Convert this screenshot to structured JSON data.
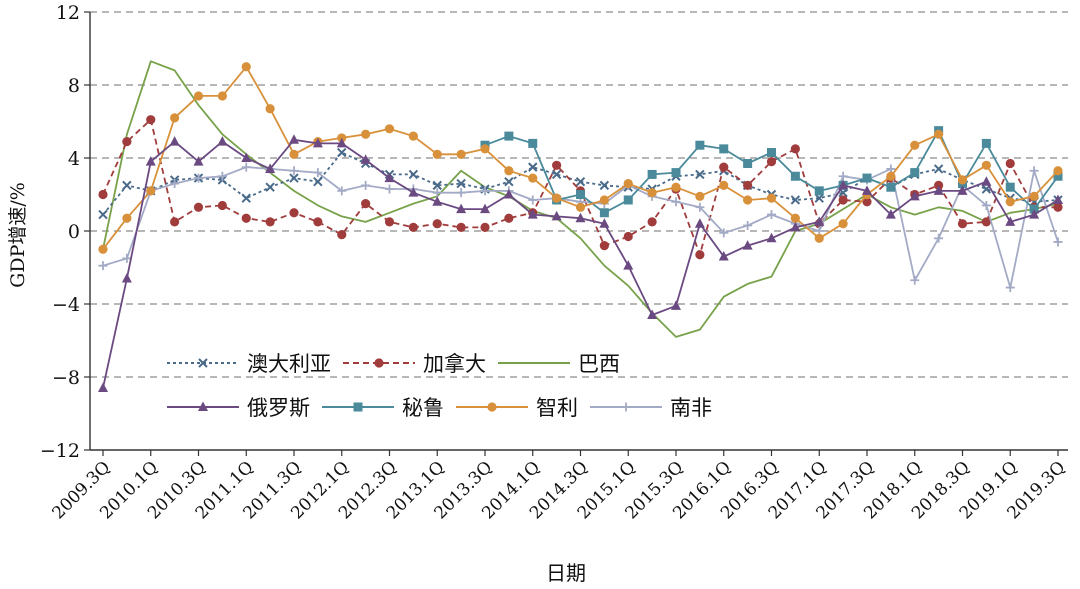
{
  "chart_data": {
    "type": "line",
    "xlabel": "日期",
    "ylabel": "GDP增速/%",
    "ylim": [
      -12,
      12
    ],
    "yticks": [
      12,
      8,
      4,
      0,
      -4,
      -8,
      -12
    ],
    "ytick_labels": [
      "12",
      "8",
      "4",
      "0",
      "−4",
      "−8",
      "−12"
    ],
    "grid": true,
    "legend_position": "lower-left inside plot",
    "x_tick_labels": [
      "2009.3Q",
      "2010.1Q",
      "2010.3Q",
      "2011.1Q",
      "2011.3Q",
      "2012.1Q",
      "2012.3Q",
      "2013.1Q",
      "2013.3Q",
      "2014.1Q",
      "2014.3Q",
      "2015.1Q",
      "2015.3Q",
      "2016.1Q",
      "2016.3Q",
      "2017.1Q",
      "2017.3Q",
      "2018.1Q",
      "2018.3Q",
      "2019.1Q",
      "2019.3Q"
    ],
    "x": [
      "2009.3Q",
      "2009.4Q",
      "2010.1Q",
      "2010.2Q",
      "2010.3Q",
      "2010.4Q",
      "2011.1Q",
      "2011.2Q",
      "2011.3Q",
      "2011.4Q",
      "2012.1Q",
      "2012.2Q",
      "2012.3Q",
      "2012.4Q",
      "2013.1Q",
      "2013.2Q",
      "2013.3Q",
      "2013.4Q",
      "2014.1Q",
      "2014.2Q",
      "2014.3Q",
      "2014.4Q",
      "2015.1Q",
      "2015.2Q",
      "2015.3Q",
      "2015.4Q",
      "2016.1Q",
      "2016.2Q",
      "2016.3Q",
      "2016.4Q",
      "2017.1Q",
      "2017.2Q",
      "2017.3Q",
      "2017.4Q",
      "2018.1Q",
      "2018.2Q",
      "2018.3Q",
      "2018.4Q",
      "2019.1Q",
      "2019.2Q",
      "2019.3Q"
    ],
    "series": [
      {
        "name": "澳大利亚",
        "color": "#4a6a8a",
        "dash": "3,3",
        "marker": "x",
        "values": [
          0.9,
          2.5,
          2.2,
          2.8,
          2.9,
          2.8,
          1.8,
          2.4,
          2.9,
          2.7,
          4.3,
          3.7,
          3.1,
          3.1,
          2.5,
          2.6,
          2.3,
          2.7,
          3.5,
          3.1,
          2.7,
          2.5,
          2.4,
          2.3,
          3.0,
          3.1,
          3.3,
          2.5,
          2.0,
          1.7,
          1.8,
          2.1,
          2.9,
          2.4,
          3.1,
          3.4,
          2.8,
          2.3,
          1.8,
          1.6,
          1.7
        ]
      },
      {
        "name": "加拿大",
        "color": "#a03c3c",
        "dash": "6,4",
        "marker": "circle",
        "values": [
          2.0,
          4.9,
          6.1,
          0.5,
          1.3,
          1.4,
          0.7,
          0.5,
          1.0,
          0.5,
          -0.2,
          1.5,
          0.5,
          0.2,
          0.4,
          0.2,
          0.2,
          0.7,
          1.0,
          3.6,
          2.2,
          -0.8,
          -0.3,
          0.5,
          2.3,
          -1.3,
          3.5,
          2.5,
          3.8,
          4.5,
          0.4,
          1.7,
          1.6,
          2.9,
          2.0,
          2.5,
          0.4,
          0.5,
          3.7,
          1.3,
          1.3
        ]
      },
      {
        "name": "巴西",
        "color": "#77a24a",
        "dash": "",
        "marker": "none",
        "values": [
          -1.0,
          5.3,
          9.3,
          8.8,
          6.9,
          5.3,
          4.2,
          3.2,
          2.2,
          1.4,
          0.8,
          0.5,
          1.0,
          1.5,
          1.9,
          3.3,
          2.4,
          1.9,
          1.1,
          0.7,
          -0.4,
          -1.9,
          -3.0,
          -4.5,
          -5.8,
          -5.4,
          -3.6,
          -2.9,
          -2.5,
          0.0,
          0.4,
          1.2,
          2.0,
          1.3,
          0.9,
          1.3,
          1.1,
          0.5,
          1.0,
          1.2,
          1.5
        ]
      },
      {
        "name": "俄罗斯",
        "color": "#6b4a82",
        "dash": "",
        "marker": "triangle",
        "values": [
          -8.6,
          -2.6,
          3.8,
          4.9,
          3.8,
          4.9,
          4.0,
          3.4,
          5.0,
          4.8,
          4.8,
          3.9,
          2.9,
          2.1,
          1.6,
          1.2,
          1.2,
          2.0,
          0.9,
          0.8,
          0.7,
          0.4,
          -1.9,
          -4.6,
          -4.1,
          0.4,
          -1.4,
          -0.8,
          -0.4,
          0.2,
          0.5,
          2.5,
          2.2,
          0.9,
          1.9,
          2.2,
          2.2,
          2.7,
          0.5,
          0.9,
          1.7
        ]
      },
      {
        "name": "秘鲁",
        "color": "#4a8a9a",
        "dash": "",
        "marker": "square",
        "values": [
          null,
          null,
          null,
          null,
          null,
          null,
          null,
          null,
          null,
          null,
          null,
          null,
          null,
          null,
          null,
          null,
          4.7,
          5.2,
          4.8,
          1.7,
          2.0,
          1.0,
          1.7,
          3.1,
          3.2,
          4.7,
          4.5,
          3.7,
          4.3,
          3.0,
          2.2,
          2.5,
          2.9,
          2.4,
          3.2,
          5.5,
          2.6,
          4.8,
          2.4,
          1.2,
          3.0
        ]
      },
      {
        "name": "智利",
        "color": "#d8913a",
        "dash": "",
        "marker": "circle",
        "values": [
          -1.0,
          0.7,
          2.2,
          6.2,
          7.4,
          7.4,
          9.0,
          6.7,
          4.2,
          4.9,
          5.1,
          5.3,
          5.6,
          5.2,
          4.2,
          4.2,
          4.5,
          3.3,
          2.9,
          1.8,
          1.3,
          1.7,
          2.6,
          2.1,
          2.4,
          1.9,
          2.5,
          1.7,
          1.8,
          0.7,
          -0.4,
          0.4,
          2.0,
          3.0,
          4.7,
          5.3,
          2.8,
          3.6,
          1.6,
          1.9,
          3.3
        ]
      },
      {
        "name": "南非",
        "color": "#a3aac6",
        "dash": "",
        "marker": "plus",
        "values": [
          -1.9,
          -1.5,
          2.2,
          2.6,
          2.9,
          3.0,
          3.5,
          3.4,
          3.3,
          3.2,
          2.2,
          2.5,
          2.3,
          2.3,
          2.1,
          2.1,
          2.2,
          2.2,
          1.7,
          1.8,
          1.6,
          1.5,
          2.5,
          1.9,
          1.6,
          1.3,
          -0.1,
          0.3,
          0.9,
          0.4,
          0.0,
          3.0,
          2.8,
          3.4,
          -2.7,
          -0.4,
          2.5,
          1.4,
          -3.1,
          3.3,
          -0.6
        ]
      }
    ]
  }
}
